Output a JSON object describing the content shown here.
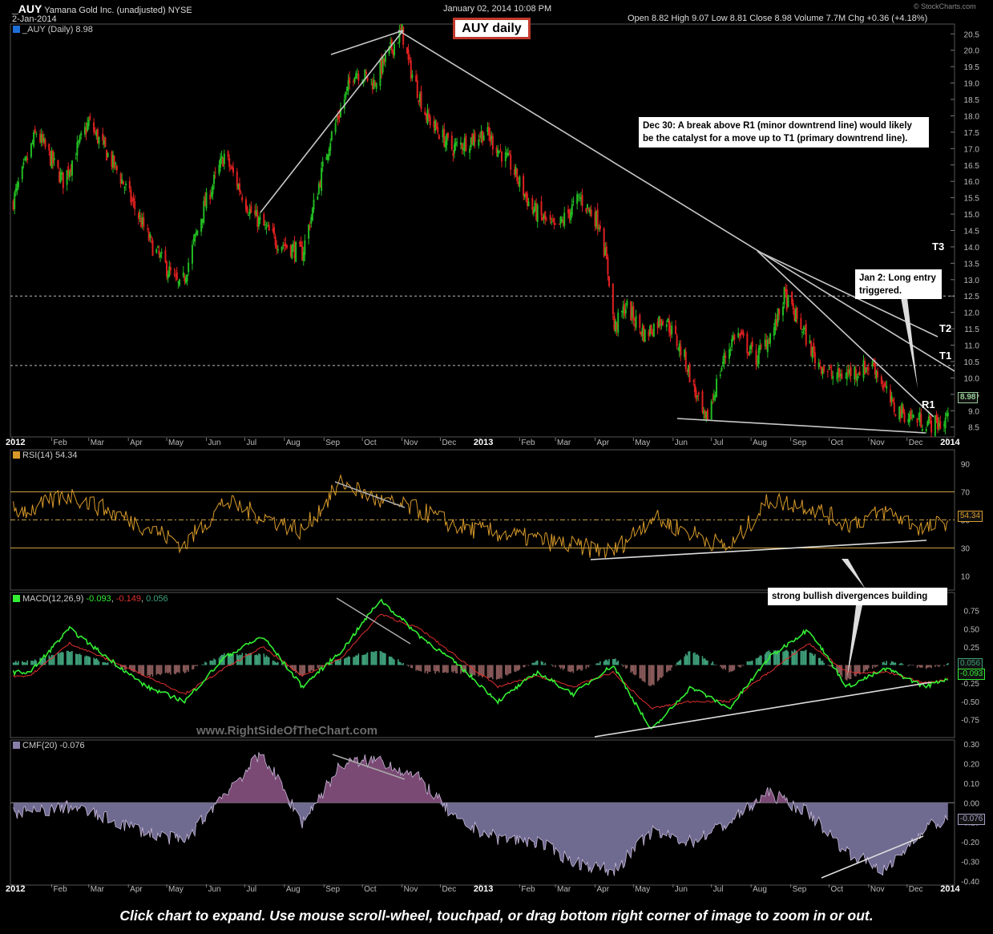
{
  "header": {
    "symbol": "_AUY",
    "company": "Yamana Gold Inc. (unadjusted)  NYSE",
    "date": "2-Jan-2014",
    "datetime": "January 02, 2014 10:08 PM",
    "ohlc": "Open 8.82   High 9.07   Low 8.81   Close 8.98   Volume 7.7M   Chg +0.36 (+4.18%)",
    "source": "© StockCharts.com",
    "chart_title": "AUY daily"
  },
  "price_panel": {
    "label": "_AUY (Daily) 8.98",
    "last_value": "8.98",
    "level_labels": [
      "T3",
      "T2",
      "T1",
      "R1"
    ]
  },
  "rsi_panel": {
    "label": "RSI(14) 54.34",
    "last_value": "54.34"
  },
  "macd_panel": {
    "label_name": "MACD(12,26,9)",
    "label_macd": "-0.093",
    "label_signal": "-0.149",
    "label_hist": "0.056",
    "last_macd": "-0.093",
    "last_hist": "0.056"
  },
  "cmf_panel": {
    "label": "CMF(20) -0.076",
    "last_value": "-0.076"
  },
  "notes": {
    "dec30": "Dec 30: A break above R1 (minor downtrend line) would likely be the catalyst for a move up to T1 (primary downtrend line).",
    "jan2": "Jan 2: Long entry triggered.",
    "divergence": "strong bullish divergences building"
  },
  "watermark": "www.RightSideOfTheChart.com",
  "footer": "Click chart to expand. Use mouse scroll-wheel, touchpad, or drag bottom right corner of image to zoom in or out.",
  "colors": {
    "up_candle": "#22bb22",
    "down_candle": "#e02020",
    "rsi": "#d89a2a",
    "macd": "#33ee33",
    "signal": "#e03030",
    "hist": "#3fa07a",
    "cmf": "#8a7fa8",
    "trendline": "#c8c8c8"
  },
  "chart_data": [
    {
      "type": "line",
      "title": "_AUY (Daily) 8.98",
      "x_ticks": [
        "2012",
        "Feb",
        "Mar",
        "Apr",
        "May",
        "Jun",
        "Jul",
        "Aug",
        "Sep",
        "Oct",
        "Nov",
        "Dec",
        "2013",
        "Feb",
        "Mar",
        "Apr",
        "May",
        "Jun",
        "Jul",
        "Aug",
        "Sep",
        "Oct",
        "Nov",
        "Dec",
        "2014"
      ],
      "y_ticks": [
        8.5,
        9.0,
        9.5,
        10.0,
        10.5,
        11.0,
        11.5,
        12.0,
        12.5,
        13.0,
        13.5,
        14.0,
        14.5,
        15.0,
        15.5,
        16.0,
        16.5,
        17.0,
        17.5,
        18.0,
        18.5,
        19.0,
        19.5,
        20.0,
        20.5
      ],
      "ylim": [
        8.2,
        20.8
      ],
      "series": [
        {
          "x": [
            "2012-01-01",
            "2012-01-20",
            "2012-02-10",
            "2012-03-01",
            "2012-03-25",
            "2012-04-20",
            "2012-05-12",
            "2012-05-30",
            "2012-06-15",
            "2012-07-05",
            "2012-07-25",
            "2012-08-15",
            "2012-09-05",
            "2012-09-25",
            "2012-10-10",
            "2012-10-20",
            "2012-11-01",
            "2012-11-06",
            "2012-11-20",
            "2012-12-10",
            "2013-01-05",
            "2013-01-25",
            "2013-02-10",
            "2013-03-01",
            "2013-03-20",
            "2013-04-05",
            "2013-04-12",
            "2013-04-16",
            "2013-04-25",
            "2013-05-10",
            "2013-05-25",
            "2013-06-10",
            "2013-06-26",
            "2013-07-10",
            "2013-07-20",
            "2013-08-05",
            "2013-08-20",
            "2013-08-27",
            "2013-09-10",
            "2013-09-20",
            "2013-10-05",
            "2013-10-20",
            "2013-11-05",
            "2013-11-20",
            "2013-12-05",
            "2013-12-20",
            "2013-12-30",
            "2014-01-02"
          ],
          "values": [
            15.3,
            17.5,
            16.0,
            17.8,
            16.2,
            14.0,
            12.7,
            15.2,
            16.8,
            15.1,
            14.2,
            13.8,
            17.2,
            19.4,
            19.0,
            19.8,
            20.6,
            19.6,
            18.0,
            17.0,
            17.5,
            16.5,
            15.2,
            14.5,
            15.5,
            14.7,
            13.0,
            11.5,
            12.2,
            11.3,
            11.9,
            10.6,
            8.6,
            10.5,
            11.4,
            10.6,
            11.6,
            12.5,
            11.5,
            10.6,
            10.0,
            10.2,
            10.4,
            9.1,
            8.8,
            8.6,
            8.62,
            8.98
          ]
        }
      ],
      "levels": [
        {
          "label": "T3",
          "value": 12.5
        },
        {
          "label": "T2",
          "value": 10.38
        }
      ]
    },
    {
      "type": "line",
      "title": "RSI(14) 54.34",
      "y_ticks": [
        10,
        30,
        50,
        70,
        90
      ],
      "ylim": [
        0,
        100
      ],
      "series": [
        {
          "x": [
            "2012-01",
            "2012-02",
            "2012-04",
            "2012-05",
            "2012-06",
            "2012-08",
            "2012-09",
            "2012-10",
            "2012-11",
            "2012-12",
            "2013-02",
            "2013-04",
            "2013-05",
            "2013-07",
            "2013-08",
            "2013-09",
            "2013-10",
            "2013-11",
            "2013-12",
            "2014-01"
          ],
          "values": [
            57,
            68,
            45,
            32,
            63,
            42,
            77,
            63,
            57,
            45,
            36,
            27,
            52,
            30,
            64,
            60,
            47,
            56,
            43,
            54.34
          ]
        }
      ]
    },
    {
      "type": "line",
      "title": "MACD(12,26,9)",
      "y_ticks": [
        -0.75,
        -0.5,
        -0.25,
        0.0,
        0.25,
        0.5,
        0.75
      ],
      "ylim": [
        -1.0,
        1.0
      ],
      "series": [
        {
          "name": "MACD",
          "x": [
            "2012-01",
            "2012-02",
            "2012-04",
            "2012-05",
            "2012-06",
            "2012-07",
            "2012-08",
            "2012-09",
            "2012-10",
            "2012-11",
            "2012-12",
            "2013-01",
            "2013-02",
            "2013-03",
            "2013-04",
            "2013-05",
            "2013-06",
            "2013-07",
            "2013-08",
            "2013-09",
            "2013-10",
            "2013-11",
            "2013-12",
            "2014-01"
          ],
          "values": [
            -0.1,
            0.5,
            -0.3,
            -0.5,
            0.1,
            0.4,
            -0.3,
            0.2,
            0.9,
            0.4,
            0.0,
            -0.5,
            -0.1,
            -0.4,
            0.0,
            -0.9,
            -0.3,
            -0.6,
            0.1,
            0.5,
            -0.3,
            -0.05,
            -0.3,
            -0.093
          ]
        },
        {
          "name": "Signal",
          "values": [
            -0.15,
            0.3,
            -0.15,
            -0.4,
            -0.05,
            0.25,
            -0.15,
            0.1,
            0.7,
            0.5,
            0.1,
            -0.3,
            -0.15,
            -0.3,
            -0.1,
            -0.6,
            -0.5,
            -0.5,
            -0.1,
            0.3,
            -0.1,
            -0.1,
            -0.25,
            -0.149
          ]
        },
        {
          "name": "Histogram",
          "values": [
            0.05,
            0.2,
            -0.15,
            -0.1,
            0.15,
            0.15,
            -0.15,
            0.1,
            0.2,
            -0.1,
            -0.1,
            -0.2,
            0.05,
            -0.1,
            0.1,
            -0.3,
            0.2,
            -0.1,
            0.2,
            0.2,
            -0.2,
            0.05,
            -0.05,
            0.056
          ]
        }
      ]
    },
    {
      "type": "area",
      "title": "CMF(20) -0.076",
      "y_ticks": [
        -0.4,
        -0.3,
        -0.2,
        -0.1,
        0.0,
        0.1,
        0.2,
        0.3
      ],
      "ylim": [
        -0.42,
        0.32
      ],
      "series": [
        {
          "x": [
            "2012-01",
            "2012-02",
            "2012-03",
            "2012-04",
            "2012-05",
            "2012-06",
            "2012-07",
            "2012-08",
            "2012-09",
            "2012-10",
            "2012-11",
            "2012-12",
            "2013-01",
            "2013-02",
            "2013-03",
            "2013-04",
            "2013-05",
            "2013-06",
            "2013-07",
            "2013-08",
            "2013-09",
            "2013-10",
            "2013-11",
            "2013-12",
            "2014-01"
          ],
          "values": [
            -0.05,
            -0.02,
            -0.08,
            -0.15,
            -0.2,
            0.05,
            0.25,
            -0.1,
            0.2,
            0.22,
            0.12,
            -0.1,
            -0.18,
            -0.2,
            -0.3,
            -0.35,
            -0.15,
            -0.2,
            -0.1,
            0.05,
            -0.05,
            -0.25,
            -0.35,
            -0.12,
            -0.076
          ]
        }
      ]
    }
  ]
}
